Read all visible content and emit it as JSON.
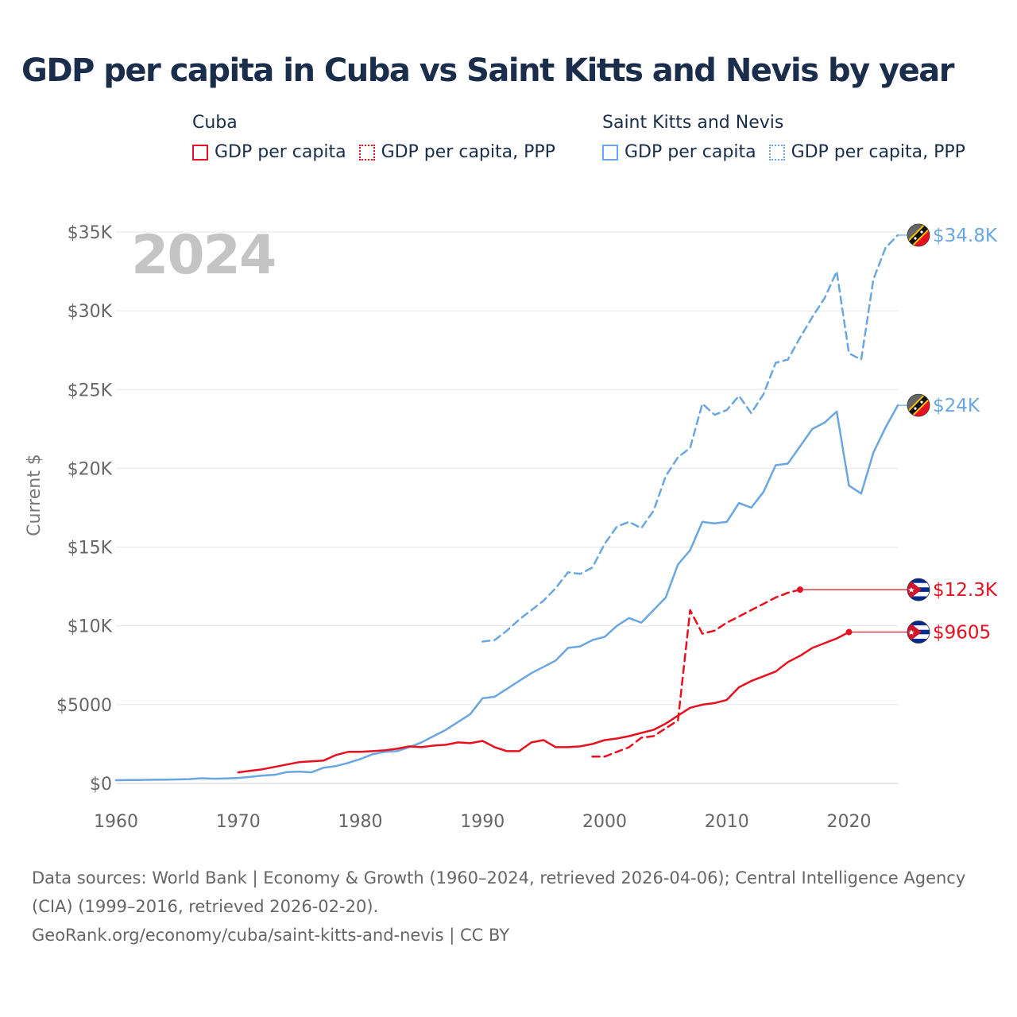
{
  "title": "GDP per capita in Cuba vs Saint Kitts and Nevis by year",
  "legend": [
    {
      "group": "Cuba",
      "color": "#e8101e",
      "items": [
        {
          "label": "GDP per capita",
          "style": "solid"
        },
        {
          "label": "GDP per capita, PPP",
          "style": "dotted"
        }
      ]
    },
    {
      "group": "Saint Kitts and Nevis",
      "color": "#6aa6e0",
      "items": [
        {
          "label": "GDP per capita",
          "style": "solid"
        },
        {
          "label": "GDP per capita, PPP",
          "style": "dotted"
        }
      ]
    }
  ],
  "footer": {
    "sources": "Data sources: World Bank | Economy & Growth (1960–2024, retrieved 2026-04-06); Central Intelligence Agency (CIA) (1999–2016, retrieved 2026-02-20).",
    "site": "GeoRank.org/economy/cuba/saint-kitts-and-nevis | CC BY"
  },
  "chart_data": {
    "type": "line",
    "title": "GDP per capita in Cuba vs Saint Kitts and Nevis by year",
    "year_overlay": "2024",
    "xlabel": "",
    "ylabel": "Current $",
    "xlim": [
      1960,
      2024
    ],
    "ylim": [
      0,
      35000
    ],
    "x_ticks": [
      {
        "value": 1960,
        "label": "1960"
      },
      {
        "value": 1970,
        "label": "1970"
      },
      {
        "value": 1980,
        "label": "1980"
      },
      {
        "value": 1990,
        "label": "1990"
      },
      {
        "value": 2000,
        "label": "2000"
      },
      {
        "value": 2010,
        "label": "2010"
      },
      {
        "value": 2020,
        "label": "2020"
      }
    ],
    "y_ticks": [
      {
        "value": 0,
        "label": "$0"
      },
      {
        "value": 5000,
        "label": "$5000"
      },
      {
        "value": 10000,
        "label": "$10K"
      },
      {
        "value": 15000,
        "label": "$15K"
      },
      {
        "value": 20000,
        "label": "$20K"
      },
      {
        "value": 25000,
        "label": "$25K"
      },
      {
        "value": 30000,
        "label": "$30K"
      },
      {
        "value": 35000,
        "label": "$35K"
      }
    ],
    "grid": true,
    "series": [
      {
        "name": "Saint Kitts and Nevis GDP per capita, PPP",
        "country": "Saint Kitts and Nevis",
        "style": "dashed",
        "color": "#6aa6e0",
        "end_label": "$34.8K",
        "x": [
          1990,
          1991,
          1992,
          1993,
          1994,
          1995,
          1996,
          1997,
          1998,
          1999,
          2000,
          2001,
          2002,
          2003,
          2004,
          2005,
          2006,
          2007,
          2008,
          2009,
          2010,
          2011,
          2012,
          2013,
          2014,
          2015,
          2016,
          2017,
          2018,
          2019,
          2020,
          2021,
          2022,
          2023,
          2024
        ],
        "values": [
          9000,
          9100,
          9700,
          10400,
          11000,
          11600,
          12400,
          13400,
          13300,
          13700,
          15200,
          16300,
          16600,
          16200,
          17300,
          19500,
          20700,
          21300,
          24100,
          23400,
          23700,
          24600,
          23500,
          24700,
          26700,
          26900,
          28300,
          29600,
          30800,
          32500,
          27300,
          26900,
          32000,
          34000,
          34800
        ]
      },
      {
        "name": "Saint Kitts and Nevis GDP per capita",
        "country": "Saint Kitts and Nevis",
        "style": "solid",
        "color": "#6aa6e0",
        "end_label": "$24K",
        "x": [
          1960,
          1961,
          1962,
          1963,
          1964,
          1965,
          1966,
          1967,
          1968,
          1969,
          1970,
          1971,
          1972,
          1973,
          1974,
          1975,
          1976,
          1977,
          1978,
          1979,
          1980,
          1981,
          1982,
          1983,
          1984,
          1985,
          1986,
          1987,
          1988,
          1989,
          1990,
          1991,
          1992,
          1993,
          1994,
          1995,
          1996,
          1997,
          1998,
          1999,
          2000,
          2001,
          2002,
          2003,
          2004,
          2005,
          2006,
          2007,
          2008,
          2009,
          2010,
          2011,
          2012,
          2013,
          2014,
          2015,
          2016,
          2017,
          2018,
          2019,
          2020,
          2021,
          2022,
          2023,
          2024
        ],
        "values": [
          200,
          210,
          220,
          230,
          240,
          250,
          270,
          330,
          300,
          320,
          350,
          420,
          500,
          550,
          720,
          750,
          700,
          1000,
          1100,
          1300,
          1550,
          1850,
          2000,
          2050,
          2300,
          2600,
          3000,
          3400,
          3900,
          4400,
          5400,
          5500,
          6000,
          6500,
          7000,
          7400,
          7800,
          8600,
          8700,
          9100,
          9300,
          10000,
          10500,
          10200,
          11000,
          11800,
          13900,
          14800,
          16600,
          16500,
          16600,
          17800,
          17500,
          18500,
          20200,
          20300,
          21400,
          22500,
          22900,
          23600,
          18900,
          18400,
          21000,
          22600,
          24000
        ]
      },
      {
        "name": "Cuba GDP per capita, PPP",
        "country": "Cuba",
        "style": "dashed",
        "color": "#e8101e",
        "end_label": "$12.3K",
        "x": [
          1999,
          2000,
          2001,
          2002,
          2003,
          2004,
          2005,
          2006,
          2007,
          2008,
          2009,
          2010,
          2011,
          2012,
          2013,
          2014,
          2015,
          2016
        ],
        "values": [
          1700,
          1700,
          2000,
          2300,
          2900,
          3000,
          3500,
          4000,
          11000,
          9500,
          9700,
          10200,
          10600,
          11000,
          11400,
          11800,
          12100,
          12300
        ]
      },
      {
        "name": "Cuba GDP per capita",
        "country": "Cuba",
        "style": "solid",
        "color": "#e8101e",
        "end_label": "$9605",
        "x": [
          1970,
          1971,
          1972,
          1973,
          1974,
          1975,
          1976,
          1977,
          1978,
          1979,
          1980,
          1981,
          1982,
          1983,
          1984,
          1985,
          1986,
          1987,
          1988,
          1989,
          1990,
          1991,
          1992,
          1993,
          1994,
          1995,
          1996,
          1997,
          1998,
          1999,
          2000,
          2001,
          2002,
          2003,
          2004,
          2005,
          2006,
          2007,
          2008,
          2009,
          2010,
          2011,
          2012,
          2013,
          2014,
          2015,
          2016,
          2017,
          2018,
          2019,
          2020
        ],
        "values": [
          700,
          800,
          900,
          1050,
          1200,
          1350,
          1400,
          1450,
          1800,
          2000,
          2000,
          2050,
          2100,
          2200,
          2350,
          2300,
          2400,
          2450,
          2600,
          2550,
          2700,
          2300,
          2050,
          2050,
          2600,
          2750,
          2300,
          2300,
          2350,
          2500,
          2750,
          2850,
          3000,
          3200,
          3400,
          3800,
          4300,
          4800,
          5000,
          5100,
          5300,
          6100,
          6500,
          6800,
          7100,
          7700,
          8100,
          8600,
          8900,
          9200,
          9605
        ]
      }
    ]
  }
}
